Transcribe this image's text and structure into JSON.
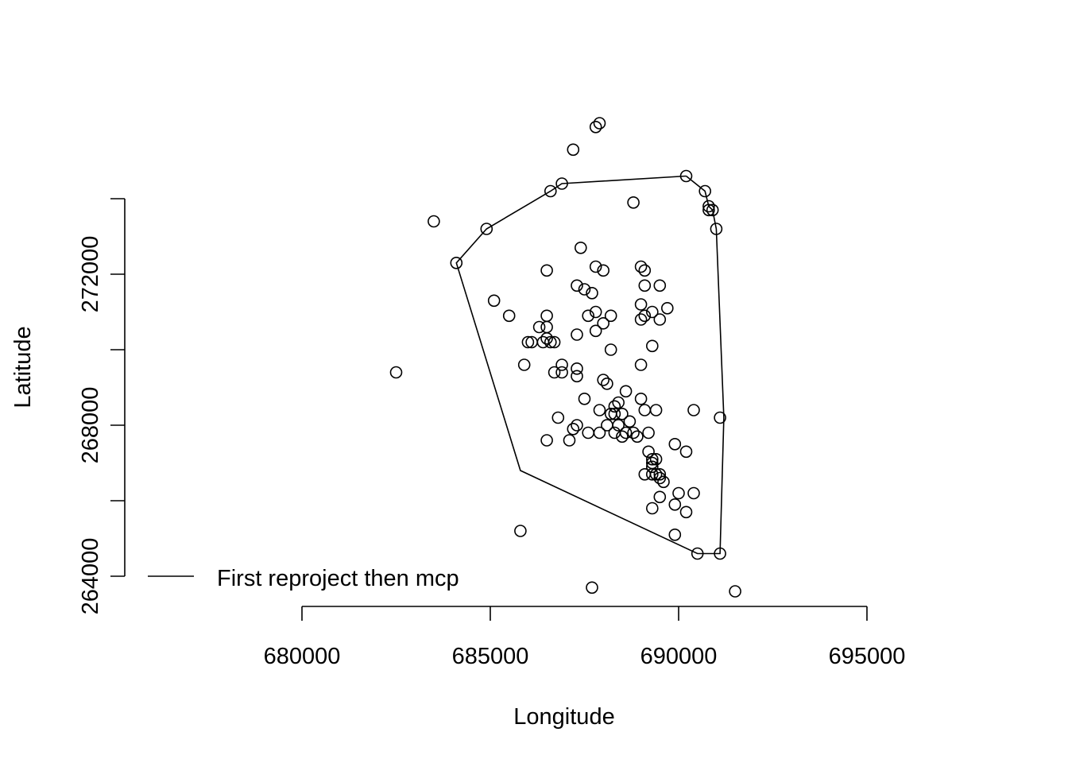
{
  "chart_data": {
    "type": "scatter",
    "title": "",
    "xlabel": "Longitude",
    "ylabel": "Latitude",
    "xlim": [
      675000,
      703000
    ],
    "ylim": [
      262400,
      276500
    ],
    "x_ticks": [
      680000,
      685000,
      690000,
      695000
    ],
    "x_tick_labels": [
      "680000",
      "685000",
      "690000",
      "695000"
    ],
    "y_ticks": [
      264000,
      266000,
      268000,
      270000,
      272000,
      274000
    ],
    "y_tick_labels": [
      "264000",
      "",
      "268000",
      "",
      "272000",
      ""
    ],
    "grid": false,
    "legend": {
      "position": "bottom-left",
      "entries": [
        {
          "label": "First reproject then mcp",
          "style": "line"
        }
      ]
    },
    "series": [
      {
        "style": "points",
        "x": [
          687900,
          687800,
          687200,
          690200,
          690700,
          686900,
          686600,
          690800,
          690900,
          690800,
          688800,
          691000,
          683500,
          684900,
          684100,
          687400,
          686500,
          688000,
          687800,
          689000,
          689100,
          689100,
          689500,
          687300,
          687500,
          687700,
          685100,
          689000,
          689300,
          689700,
          687600,
          687800,
          685500,
          686500,
          688200,
          689000,
          689100,
          689500,
          688000,
          686300,
          686500,
          687800,
          687300,
          686500,
          686700,
          686100,
          686000,
          689300,
          688200,
          686600,
          686400,
          685900,
          689000,
          686900,
          687300,
          686900,
          686700,
          682500,
          687300,
          688000,
          688100,
          688600,
          687500,
          689000,
          688400,
          688300,
          687900,
          689100,
          690400,
          688200,
          688300,
          688500,
          688700,
          689400,
          686800,
          691100,
          688400,
          687300,
          688100,
          687600,
          688600,
          688300,
          687200,
          688800,
          689200,
          687900,
          688500,
          688900,
          686500,
          687100,
          689900,
          690200,
          689200,
          689300,
          689400,
          689300,
          689300,
          689400,
          689500,
          689100,
          689300,
          689500,
          689600,
          690400,
          690000,
          689500,
          689900,
          689300,
          690200,
          685800,
          689900,
          690500,
          691100,
          687700,
          691500
        ],
        "y": [
          276000,
          275900,
          275300,
          274600,
          274200,
          274400,
          274200,
          273800,
          273700,
          273700,
          273900,
          273200,
          273400,
          273200,
          272300,
          272700,
          272100,
          272100,
          272200,
          272200,
          272100,
          271700,
          271700,
          271700,
          271600,
          271500,
          271300,
          271200,
          271000,
          271100,
          270900,
          271000,
          270900,
          270900,
          270900,
          270800,
          270900,
          270800,
          270700,
          270600,
          270600,
          270500,
          270400,
          270300,
          270200,
          270200,
          270200,
          270100,
          270000,
          270200,
          270200,
          269600,
          269600,
          269600,
          269500,
          269400,
          269400,
          269400,
          269300,
          269200,
          269100,
          268900,
          268700,
          268700,
          268600,
          268500,
          268400,
          268400,
          268400,
          268300,
          268300,
          268300,
          268100,
          268400,
          268200,
          268200,
          268000,
          268000,
          268000,
          267800,
          267800,
          267800,
          267900,
          267800,
          267800,
          267800,
          267700,
          267700,
          267600,
          267600,
          267500,
          267300,
          267300,
          267100,
          267100,
          267000,
          266900,
          266700,
          266700,
          266700,
          266700,
          266600,
          266500,
          266200,
          266200,
          266100,
          265900,
          265800,
          265700,
          265200,
          265100,
          264600,
          264600,
          263700,
          263600
        ]
      },
      {
        "name": "First reproject then mcp",
        "style": "line",
        "x": [
          690200,
          690700,
          690800,
          690900,
          691000,
          691200,
          691100,
          690500,
          685800,
          684100,
          684900,
          686600,
          686900,
          690200
        ],
        "y": [
          274600,
          274200,
          273800,
          273700,
          273200,
          268200,
          264600,
          264600,
          266800,
          272300,
          273200,
          274200,
          274400,
          274600
        ]
      }
    ]
  }
}
